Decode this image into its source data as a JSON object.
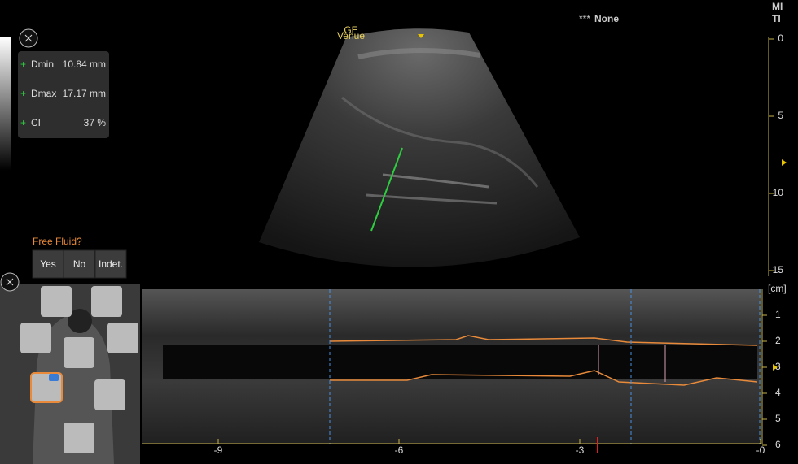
{
  "header": {
    "mi": "MI",
    "ti": "TI",
    "stars": "***",
    "preset": "None"
  },
  "probe": {
    "brand": "GE",
    "model": "Venue"
  },
  "depth_scale": {
    "ticks": [
      "0",
      "5",
      "10",
      "15"
    ]
  },
  "mmode": {
    "unit": "[cm]",
    "depth_ticks": [
      "1",
      "2",
      "3",
      "4",
      "5",
      "6"
    ],
    "time_ticks": [
      "-9",
      "-6",
      "-3",
      "-0"
    ]
  },
  "measurements": [
    {
      "label": "Dmin",
      "value": "10.84 mm"
    },
    {
      "label": "Dmax",
      "value": "17.17 mm"
    },
    {
      "label": "CI",
      "value": "37 %"
    }
  ],
  "free_fluid": {
    "question": "Free Fluid?",
    "options": [
      "Yes",
      "No",
      "Indet."
    ]
  }
}
